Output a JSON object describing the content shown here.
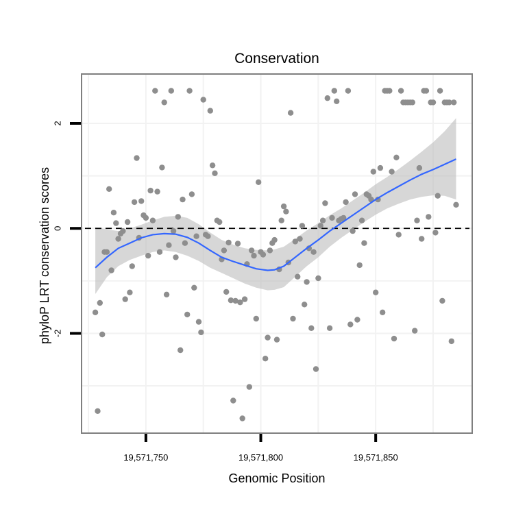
{
  "chart_data": {
    "type": "scatter",
    "title": "Conservation",
    "xlabel": "Genomic Position",
    "ylabel": "phyloP LRT conservation scores",
    "xlim": [
      19571722,
      19571892
    ],
    "ylim": [
      -3.9,
      2.94
    ],
    "x_ticks": [
      {
        "value": 19571750,
        "label": "19,571,750"
      },
      {
        "value": 19571800,
        "label": "19,571,800"
      },
      {
        "value": 19571850,
        "label": "19,571,850"
      }
    ],
    "y_ticks": [
      {
        "value": -2,
        "label": "-2"
      },
      {
        "value": 0,
        "label": "0"
      },
      {
        "value": 2,
        "label": "2"
      }
    ],
    "y_minor_gridlines": [
      -3,
      -1,
      1
    ],
    "reference_line": {
      "y": 0,
      "style": "dashed"
    },
    "point_color": "#8e8e8e",
    "smooth_color": "#3366ff",
    "band_color": "#bdbdbd",
    "points": [
      [
        19571728,
        -1.6
      ],
      [
        19571729,
        -3.48
      ],
      [
        19571730,
        -1.42
      ],
      [
        19571731,
        -2.02
      ],
      [
        19571732,
        -0.45
      ],
      [
        19571733,
        -0.45
      ],
      [
        19571734,
        0.75
      ],
      [
        19571735,
        -0.8
      ],
      [
        19571736,
        0.3
      ],
      [
        19571737,
        0.1
      ],
      [
        19571738,
        -0.2
      ],
      [
        19571739,
        -0.1
      ],
      [
        19571740,
        -0.05
      ],
      [
        19571741,
        -1.35
      ],
      [
        19571742,
        0.12
      ],
      [
        19571743,
        -1.22
      ],
      [
        19571744,
        -0.72
      ],
      [
        19571745,
        0.5
      ],
      [
        19571746,
        1.34
      ],
      [
        19571747,
        -0.18
      ],
      [
        19571748,
        0.52
      ],
      [
        19571749,
        0.25
      ],
      [
        19571750,
        0.2
      ],
      [
        19571751,
        -0.52
      ],
      [
        19571752,
        0.72
      ],
      [
        19571753,
        0.15
      ],
      [
        19571754,
        2.62
      ],
      [
        19571755,
        0.7
      ],
      [
        19571756,
        -0.45
      ],
      [
        19571757,
        1.16
      ],
      [
        19571758,
        2.4
      ],
      [
        19571759,
        -1.26
      ],
      [
        19571760,
        -0.32
      ],
      [
        19571761,
        2.62
      ],
      [
        19571762,
        -0.05
      ],
      [
        19571763,
        -0.55
      ],
      [
        19571764,
        0.22
      ],
      [
        19571765,
        -2.32
      ],
      [
        19571766,
        0.55
      ],
      [
        19571767,
        -0.28
      ],
      [
        19571768,
        -1.64
      ],
      [
        19571769,
        2.62
      ],
      [
        19571770,
        0.65
      ],
      [
        19571771,
        -1.13
      ],
      [
        19571772,
        -0.15
      ],
      [
        19571773,
        -1.78
      ],
      [
        19571774,
        -1.98
      ],
      [
        19571775,
        2.45
      ],
      [
        19571776,
        -0.12
      ],
      [
        19571777,
        -0.15
      ],
      [
        19571778,
        2.24
      ],
      [
        19571779,
        1.2
      ],
      [
        19571780,
        1.05
      ],
      [
        19571781,
        0.15
      ],
      [
        19571782,
        0.12
      ],
      [
        19571783,
        -0.59
      ],
      [
        19571784,
        -0.42
      ],
      [
        19571785,
        -1.21
      ],
      [
        19571786,
        -0.27
      ],
      [
        19571787,
        -1.37
      ],
      [
        19571788,
        -3.28
      ],
      [
        19571789,
        -1.38
      ],
      [
        19571790,
        -0.29
      ],
      [
        19571791,
        -1.41
      ],
      [
        19571792,
        -3.62
      ],
      [
        19571793,
        -1.35
      ],
      [
        19571794,
        -0.68
      ],
      [
        19571795,
        -3.02
      ],
      [
        19571796,
        -0.42
      ],
      [
        19571797,
        -0.52
      ],
      [
        19571798,
        -1.72
      ],
      [
        19571799,
        0.88
      ],
      [
        19571800,
        -0.45
      ],
      [
        19571801,
        -0.5
      ],
      [
        19571802,
        -2.48
      ],
      [
        19571803,
        -2.08
      ],
      [
        19571804,
        -0.42
      ],
      [
        19571805,
        -0.28
      ],
      [
        19571806,
        -0.22
      ],
      [
        19571807,
        -2.12
      ],
      [
        19571808,
        -0.78
      ],
      [
        19571809,
        0.15
      ],
      [
        19571810,
        0.42
      ],
      [
        19571811,
        0.32
      ],
      [
        19571812,
        -0.65
      ],
      [
        19571813,
        2.2
      ],
      [
        19571814,
        -1.72
      ],
      [
        19571815,
        -0.25
      ],
      [
        19571816,
        -0.92
      ],
      [
        19571817,
        -0.2
      ],
      [
        19571818,
        0.05
      ],
      [
        19571819,
        -1.45
      ],
      [
        19571820,
        -1.02
      ],
      [
        19571821,
        -0.38
      ],
      [
        19571822,
        -1.9
      ],
      [
        19571823,
        -0.45
      ],
      [
        19571824,
        -2.68
      ],
      [
        19571825,
        -0.95
      ],
      [
        19571826,
        0.05
      ],
      [
        19571827,
        0.15
      ],
      [
        19571828,
        0.48
      ],
      [
        19571829,
        2.48
      ],
      [
        19571830,
        -1.9
      ],
      [
        19571831,
        0.2
      ],
      [
        19571832,
        2.62
      ],
      [
        19571833,
        2.42
      ],
      [
        19571834,
        0.15
      ],
      [
        19571835,
        0.18
      ],
      [
        19571836,
        0.2
      ],
      [
        19571837,
        0.5
      ],
      [
        19571838,
        2.62
      ],
      [
        19571839,
        -1.83
      ],
      [
        19571840,
        -0.05
      ],
      [
        19571841,
        0.65
      ],
      [
        19571842,
        -1.74
      ],
      [
        19571843,
        -0.7
      ],
      [
        19571844,
        0.15
      ],
      [
        19571845,
        -0.28
      ],
      [
        19571846,
        0.65
      ],
      [
        19571847,
        0.62
      ],
      [
        19571848,
        0.55
      ],
      [
        19571849,
        1.08
      ],
      [
        19571850,
        -1.22
      ],
      [
        19571851,
        0.55
      ],
      [
        19571852,
        1.15
      ],
      [
        19571853,
        -1.6
      ],
      [
        19571854,
        2.62
      ],
      [
        19571855,
        2.62
      ],
      [
        19571856,
        2.62
      ],
      [
        19571857,
        1.08
      ],
      [
        19571858,
        -2.1
      ],
      [
        19571859,
        1.35
      ],
      [
        19571860,
        -0.12
      ],
      [
        19571861,
        2.62
      ],
      [
        19571862,
        2.4
      ],
      [
        19571863,
        2.4
      ],
      [
        19571864,
        2.4
      ],
      [
        19571865,
        2.4
      ],
      [
        19571866,
        2.4
      ],
      [
        19571867,
        -1.95
      ],
      [
        19571868,
        0.15
      ],
      [
        19571869,
        1.15
      ],
      [
        19571870,
        -0.2
      ],
      [
        19571871,
        2.62
      ],
      [
        19571872,
        2.62
      ],
      [
        19571873,
        0.22
      ],
      [
        19571874,
        2.4
      ],
      [
        19571875,
        2.4
      ],
      [
        19571876,
        -0.08
      ],
      [
        19571877,
        0.62
      ],
      [
        19571878,
        2.62
      ],
      [
        19571879,
        -1.38
      ],
      [
        19571880,
        2.4
      ],
      [
        19571881,
        2.4
      ],
      [
        19571882,
        2.4
      ],
      [
        19571883,
        -2.15
      ],
      [
        19571884,
        2.4
      ],
      [
        19571885,
        0.45
      ]
    ],
    "smooth": {
      "method": "loess",
      "x": [
        19571728,
        19571733,
        19571738,
        19571743,
        19571748,
        19571753,
        19571758,
        19571763,
        19571768,
        19571773,
        19571778,
        19571783,
        19571788,
        19571793,
        19571798,
        19571803,
        19571806,
        19571810,
        19571815,
        19571820,
        19571825,
        19571830,
        19571835,
        19571840,
        19571845,
        19571850,
        19571855,
        19571860,
        19571865,
        19571870,
        19571875,
        19571880,
        19571885
      ],
      "y": [
        -0.75,
        -0.55,
        -0.38,
        -0.28,
        -0.18,
        -0.12,
        -0.1,
        -0.11,
        -0.17,
        -0.28,
        -0.42,
        -0.55,
        -0.63,
        -0.7,
        -0.77,
        -0.8,
        -0.79,
        -0.72,
        -0.55,
        -0.38,
        -0.22,
        -0.05,
        0.1,
        0.25,
        0.4,
        0.55,
        0.68,
        0.8,
        0.92,
        1.03,
        1.12,
        1.22,
        1.32
      ],
      "lower": [
        -1.25,
        -0.93,
        -0.72,
        -0.6,
        -0.52,
        -0.45,
        -0.42,
        -0.45,
        -0.52,
        -0.62,
        -0.75,
        -0.85,
        -0.95,
        -1.05,
        -1.13,
        -1.18,
        -1.17,
        -1.12,
        -0.92,
        -0.72,
        -0.55,
        -0.35,
        -0.18,
        -0.03,
        0.12,
        0.26,
        0.38,
        0.47,
        0.55,
        0.6,
        0.63,
        0.62,
        0.55
      ],
      "upper": [
        0.02,
        -0.02,
        -0.05,
        0.0,
        0.07,
        0.15,
        0.22,
        0.24,
        0.2,
        0.08,
        -0.08,
        -0.22,
        -0.31,
        -0.38,
        -0.41,
        -0.42,
        -0.4,
        -0.35,
        -0.2,
        -0.04,
        0.1,
        0.25,
        0.38,
        0.53,
        0.68,
        0.84,
        0.98,
        1.13,
        1.29,
        1.46,
        1.64,
        1.85,
        2.1
      ]
    }
  }
}
